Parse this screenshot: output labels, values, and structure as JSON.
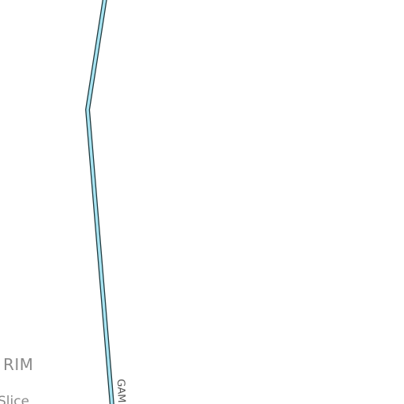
{
  "map": {
    "labels": {
      "area_name": "RIM",
      "place_name": "Slice",
      "road_name": "GAM"
    },
    "colors": {
      "background": "#ffffff",
      "river_fill": "#a8e4f2",
      "river_outline": "#1f3a3f",
      "label_gray": "#8a8a8a"
    }
  }
}
